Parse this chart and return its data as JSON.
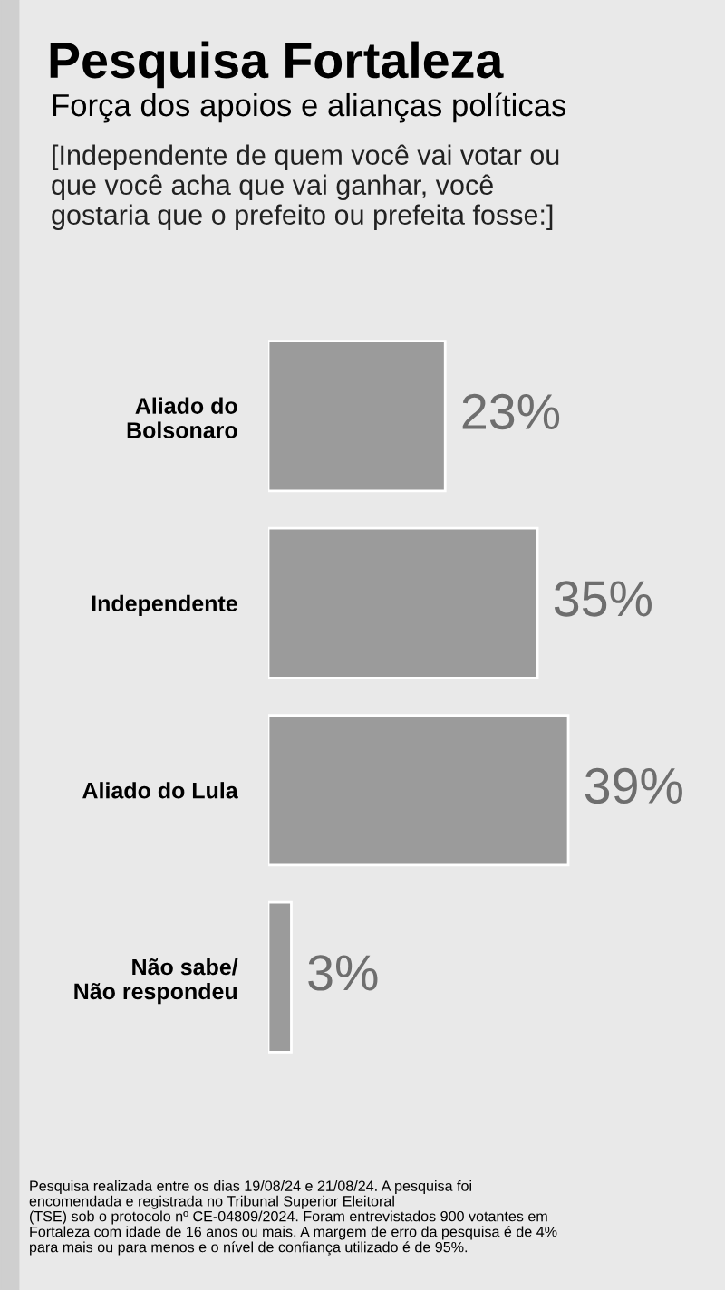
{
  "chart_data": {
    "type": "bar",
    "orientation": "horizontal",
    "title": "Pesquisa Fortaleza",
    "subtitle": "Força dos apoios e alianças políticas",
    "annotations": [
      "[Independente de quem você vai votar ou\nque você acha que vai ganhar, você\ngostaria que o prefeito ou prefeita fosse:]",
      "Pesquisa realizada entre os dias 19/08/24 e 21/08/24. A pesquisa foi\nencomendada e registrada no Tribunal Superior Eleitoral\n(TSE) sob o protocolo nº CE-04809/2024. Foram entrevistados 900 votantes em\nFortaleza com idade de 16 anos ou mais. A margem de erro da pesquisa é de 4%\npara mais ou para menos e o nível de confiança utilizado é de 95%."
    ],
    "categories": [
      "Aliado do\nBolsonaro",
      "Independente",
      "Aliado do Lula",
      "Não sabe/\nNão respondeu"
    ],
    "values": [
      23,
      35,
      39,
      3
    ],
    "color": "#9b9b9b",
    "data_labels": true,
    "value_labels": [
      "23%",
      "35%",
      "39%",
      "3%"
    ]
  }
}
